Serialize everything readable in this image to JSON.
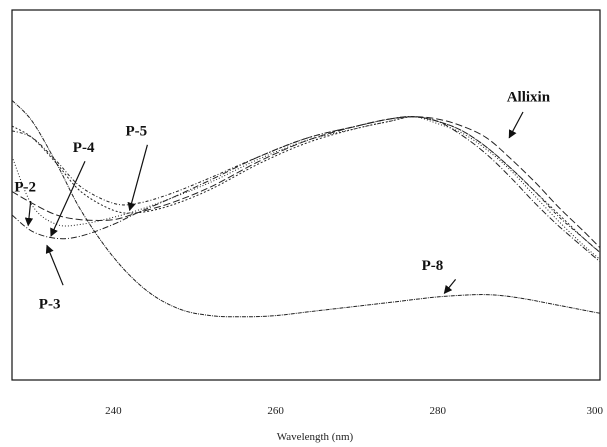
{
  "chart_data": {
    "type": "line",
    "title": "",
    "xlabel": "Wavelength   (nm)",
    "ylabel": "",
    "xlim": [
      227.5,
      300
    ],
    "ylim": [
      0,
      1
    ],
    "x_ticks": [
      240,
      260,
      280,
      300
    ],
    "grid": false,
    "legend": "none",
    "series": [
      {
        "name": "Allixin",
        "dash": "7,3",
        "x": [
          227.5,
          230,
          233,
          236,
          240,
          243,
          247,
          252,
          258,
          264,
          270,
          274,
          277,
          280,
          283,
          286,
          289,
          292,
          295,
          298,
          300
        ],
        "y": [
          0.6,
          0.55,
          0.5,
          0.48,
          0.48,
          0.51,
          0.55,
          0.62,
          0.73,
          0.82,
          0.88,
          0.91,
          0.92,
          0.91,
          0.88,
          0.83,
          0.74,
          0.64,
          0.53,
          0.43,
          0.36
        ]
      },
      {
        "name": "P-2",
        "dash": "1,2",
        "x": [
          227.5,
          230,
          233,
          236,
          240,
          243,
          247,
          252,
          258,
          264,
          270,
          274,
          277,
          280,
          283,
          286,
          289,
          292,
          295,
          298,
          300
        ],
        "y": [
          0.75,
          0.54,
          0.46,
          0.46,
          0.49,
          0.52,
          0.57,
          0.64,
          0.74,
          0.82,
          0.87,
          0.9,
          0.92,
          0.89,
          0.85,
          0.78,
          0.69,
          0.58,
          0.47,
          0.37,
          0.31
        ]
      },
      {
        "name": "P-3",
        "dash": "6,2,1,2",
        "x": [
          227.5,
          230,
          233,
          236,
          240,
          243,
          247,
          252,
          258,
          264,
          270,
          274,
          277,
          280,
          283,
          286,
          289,
          292,
          295,
          298,
          300
        ],
        "y": [
          0.5,
          0.43,
          0.4,
          0.41,
          0.46,
          0.51,
          0.57,
          0.65,
          0.75,
          0.83,
          0.88,
          0.91,
          0.92,
          0.9,
          0.84,
          0.76,
          0.66,
          0.55,
          0.45,
          0.36,
          0.3
        ]
      },
      {
        "name": "P-4",
        "dash": "3,2,1,2",
        "x": [
          227.5,
          230,
          233,
          236,
          240,
          243,
          247,
          252,
          258,
          264,
          270,
          274,
          277,
          280,
          283,
          286,
          289,
          292,
          295,
          298,
          300
        ],
        "y": [
          0.86,
          0.83,
          0.73,
          0.62,
          0.55,
          0.55,
          0.59,
          0.66,
          0.75,
          0.83,
          0.88,
          0.91,
          0.92,
          0.9,
          0.86,
          0.79,
          0.7,
          0.6,
          0.49,
          0.4,
          0.34
        ]
      },
      {
        "name": "P-5",
        "dash": "2,2",
        "x": [
          227.5,
          230,
          233,
          236,
          240,
          243,
          247,
          252,
          258,
          264,
          270,
          274,
          277,
          280,
          283,
          286,
          289,
          292,
          295,
          298,
          300
        ],
        "y": [
          0.88,
          0.83,
          0.72,
          0.6,
          0.52,
          0.51,
          0.54,
          0.61,
          0.72,
          0.81,
          0.87,
          0.9,
          0.92,
          0.9,
          0.86,
          0.79,
          0.7,
          0.6,
          0.5,
          0.4,
          0.34
        ]
      },
      {
        "name": "P-8",
        "dash": "4,1,1,1",
        "x": [
          227.5,
          230,
          233,
          236,
          240,
          244,
          248,
          252,
          256,
          260,
          265,
          270,
          275,
          280,
          285,
          288,
          291,
          294,
          297,
          300
        ],
        "y": [
          0.99,
          0.9,
          0.72,
          0.52,
          0.32,
          0.18,
          0.1,
          0.07,
          0.065,
          0.07,
          0.09,
          0.11,
          0.13,
          0.15,
          0.16,
          0.155,
          0.14,
          0.12,
          0.1,
          0.08
        ]
      }
    ],
    "annotations": [
      {
        "text": "Allixin",
        "label_x": 288.5,
        "label_y": 0.985,
        "arrow_from": [
          290.5,
          0.94
        ],
        "arrow_to": [
          288.8,
          0.83
        ]
      },
      {
        "text": "P-5",
        "label_x": 241.5,
        "label_y": 0.84,
        "arrow_from": [
          244.2,
          0.8
        ],
        "arrow_to": [
          242.0,
          0.52
        ]
      },
      {
        "text": "P-4",
        "label_x": 235.0,
        "label_y": 0.77,
        "arrow_from": [
          236.5,
          0.73
        ],
        "arrow_to": [
          232.3,
          0.41
        ]
      },
      {
        "text": "P-2",
        "label_x": 227.8,
        "label_y": 0.6,
        "arrow_from": [
          229.8,
          0.56
        ],
        "arrow_to": [
          229.5,
          0.455
        ]
      },
      {
        "text": "P-3",
        "label_x": 230.8,
        "label_y": 0.1,
        "arrow_from": [
          233.8,
          0.2
        ],
        "arrow_to": [
          231.8,
          0.37
        ]
      },
      {
        "text": "P-8",
        "label_x": 278.0,
        "label_y": 0.265,
        "arrow_from": [
          282.2,
          0.225
        ],
        "arrow_to": [
          280.8,
          0.165
        ]
      }
    ]
  }
}
